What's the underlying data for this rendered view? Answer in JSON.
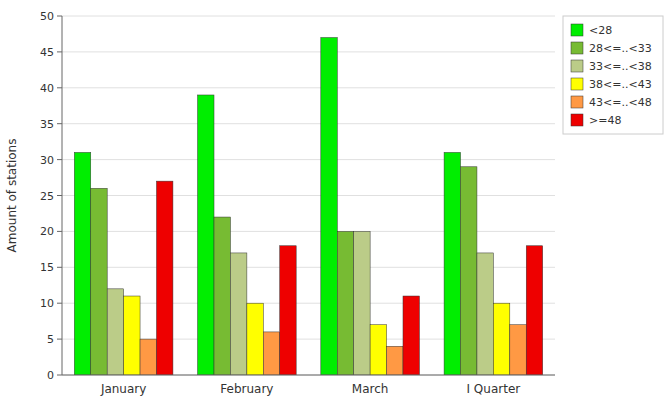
{
  "chart_data": {
    "type": "bar",
    "categories": [
      "January",
      "February",
      "March",
      "I Quarter"
    ],
    "series": [
      {
        "name": "<28",
        "color": "#00ee00",
        "values": [
          31,
          39,
          47,
          31
        ]
      },
      {
        "name": "28<=..<33",
        "color": "#77bb33",
        "values": [
          26,
          22,
          20,
          29
        ]
      },
      {
        "name": "33<=..<38",
        "color": "#bbcc88",
        "values": [
          12,
          17,
          20,
          17
        ]
      },
      {
        "name": "38<=..<43",
        "color": "#ffff00",
        "values": [
          11,
          10,
          7,
          10
        ]
      },
      {
        "name": "43<=..<48",
        "color": "#ff9944",
        "values": [
          5,
          6,
          4,
          7
        ]
      },
      {
        "name": ">=48",
        "color": "#ee0000",
        "values": [
          27,
          18,
          11,
          18
        ]
      }
    ],
    "ylabel": "Amount of stations",
    "ylim": [
      0,
      50
    ],
    "yticks": [
      0,
      5,
      10,
      15,
      20,
      25,
      30,
      35,
      40,
      45,
      50
    ],
    "grid": true,
    "legend": "upper right"
  }
}
